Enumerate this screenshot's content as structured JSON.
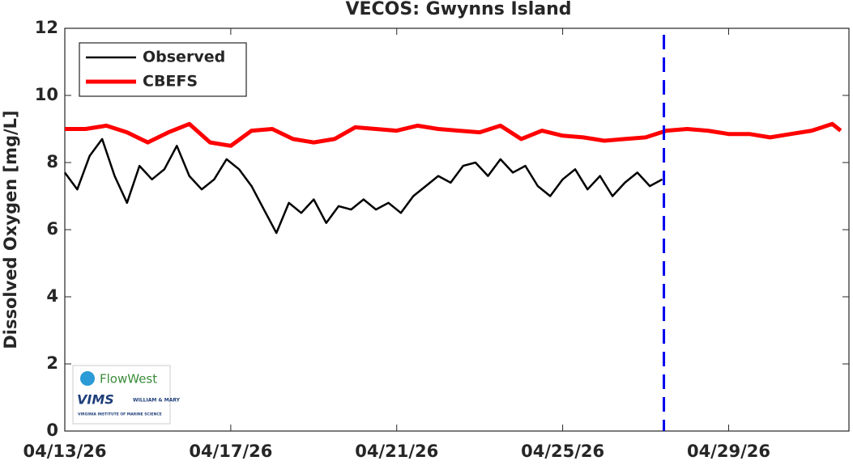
{
  "chart_data": {
    "type": "line",
    "title": "VECOS: Gwynns Island",
    "y_label": "Dissolved Oxygen [mg/L]",
    "xlim": [
      0,
      18.9
    ],
    "xticks": [
      {
        "value": 0,
        "label": "04/13/26"
      },
      {
        "value": 4,
        "label": "04/17/26"
      },
      {
        "value": 8,
        "label": "04/21/26"
      },
      {
        "value": 12,
        "label": "04/25/26"
      },
      {
        "value": 16,
        "label": "04/29/26"
      }
    ],
    "ylim": [
      0,
      12
    ],
    "yticks": [
      0,
      2,
      4,
      6,
      8,
      10,
      12
    ],
    "forecast_line_x": 14.44,
    "forecast_line_color": "#0000ee",
    "legend": "upper left",
    "series": [
      {
        "name": "Observed",
        "color": "#000000",
        "width": 2.5,
        "x": [
          0,
          0.3,
          0.6,
          0.9,
          1.2,
          1.5,
          1.8,
          2.1,
          2.4,
          2.7,
          3.0,
          3.3,
          3.6,
          3.9,
          4.2,
          4.5,
          4.8,
          5.1,
          5.4,
          5.7,
          6.0,
          6.3,
          6.6,
          6.9,
          7.2,
          7.5,
          7.8,
          8.1,
          8.4,
          8.7,
          9.0,
          9.3,
          9.6,
          9.9,
          10.2,
          10.5,
          10.8,
          11.1,
          11.4,
          11.7,
          12.0,
          12.3,
          12.6,
          12.9,
          13.2,
          13.5,
          13.8,
          14.1,
          14.4
        ],
        "values": [
          7.7,
          7.2,
          8.2,
          8.7,
          7.6,
          6.8,
          7.9,
          7.5,
          7.8,
          8.5,
          7.6,
          7.2,
          7.5,
          8.1,
          7.8,
          7.3,
          6.6,
          5.9,
          6.8,
          6.5,
          6.9,
          6.2,
          6.7,
          6.6,
          6.9,
          6.6,
          6.8,
          6.5,
          7.0,
          7.3,
          7.6,
          7.4,
          7.9,
          8.0,
          7.6,
          8.1,
          7.7,
          7.9,
          7.3,
          7.0,
          7.5,
          7.8,
          7.2,
          7.6,
          7.0,
          7.4,
          7.7,
          7.3,
          7.5
        ]
      },
      {
        "name": "CBEFS",
        "color": "#ff0000",
        "width": 5,
        "x": [
          0,
          0.5,
          1.0,
          1.5,
          2.0,
          2.5,
          3.0,
          3.5,
          4.0,
          4.5,
          5.0,
          5.5,
          6.0,
          6.5,
          7.0,
          7.5,
          8.0,
          8.5,
          9.0,
          9.5,
          10.0,
          10.5,
          11.0,
          11.5,
          12.0,
          12.5,
          13.0,
          13.5,
          14.0,
          14.5,
          15.0,
          15.5,
          16.0,
          16.5,
          17.0,
          17.5,
          18.0,
          18.5,
          18.7
        ],
        "values": [
          9.0,
          9.0,
          9.1,
          8.9,
          8.6,
          8.9,
          9.15,
          8.6,
          8.5,
          8.95,
          9.0,
          8.7,
          8.6,
          8.7,
          9.05,
          9.0,
          8.95,
          9.1,
          9.0,
          8.95,
          8.9,
          9.1,
          8.7,
          8.95,
          8.8,
          8.75,
          8.65,
          8.7,
          8.75,
          8.95,
          9.0,
          8.95,
          8.85,
          8.85,
          8.75,
          8.85,
          8.95,
          9.15,
          8.95
        ]
      }
    ],
    "logo": {
      "flowwest": "FlowWest",
      "vims": "VIMS",
      "wm": "WILLIAM & MARY",
      "vims_full": "VIRGINIA INSTITUTE OF MARINE SCIENCE"
    }
  }
}
